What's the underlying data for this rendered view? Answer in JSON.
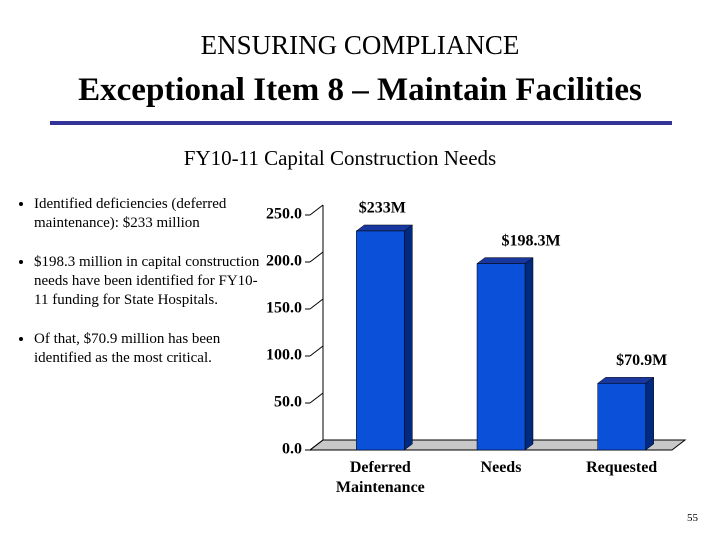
{
  "header": {
    "title": "ENSURING COMPLIANCE",
    "subtitle": "Exceptional Item 8 – Maintain Facilities"
  },
  "bullets": [
    "Identified deficiencies (deferred maintenance): $233 million",
    "$198.3 million in capital construction needs have been identified for FY10-11 funding for State Hospitals.",
    "Of that, $70.9 million has been identified as the most critical."
  ],
  "page_number": "55",
  "chart_data": {
    "type": "bar",
    "title": "FY10-11 Capital Construction Needs",
    "categories": [
      "Deferred Maintenance",
      "Needs",
      "Requested"
    ],
    "values": [
      233,
      198.3,
      70.9
    ],
    "value_labels": [
      "$233M",
      "$198.3M",
      "$70.9M"
    ],
    "color": "#0a50d8",
    "ylim": [
      0,
      250
    ],
    "yticks": [
      {
        "value": 0,
        "label": "0.0"
      },
      {
        "value": 50,
        "label": "50.0"
      },
      {
        "value": 100,
        "label": "100.0"
      },
      {
        "value": 150,
        "label": "150.0"
      },
      {
        "value": 200,
        "label": "200.0"
      },
      {
        "value": 250,
        "label": "250.0"
      }
    ],
    "grid": false
  }
}
